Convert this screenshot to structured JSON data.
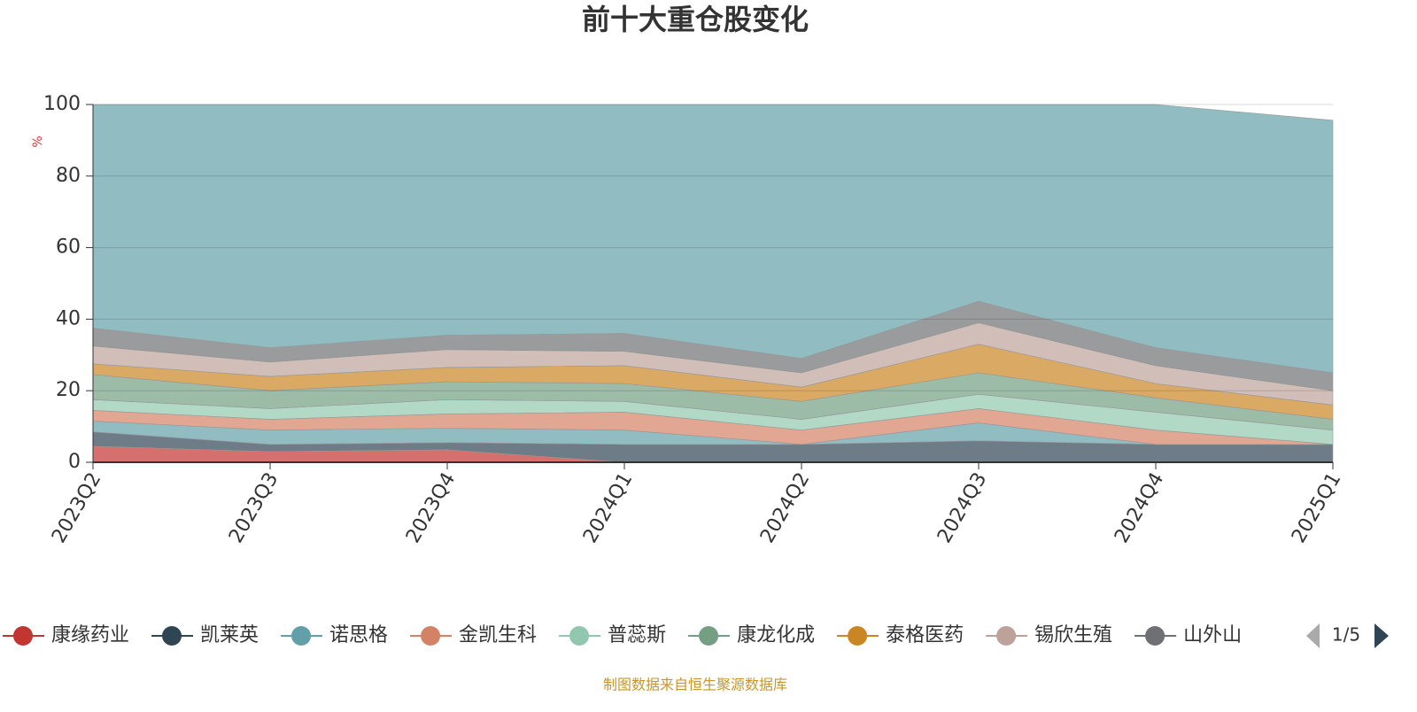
{
  "chart_data": {
    "type": "stacked_area",
    "title": "前十大重仓股变化",
    "y_label": "%",
    "categories": [
      "2023Q2",
      "2023Q3",
      "2023Q4",
      "2024Q1",
      "2024Q2",
      "2024Q3",
      "2024Q4",
      "2025Q1"
    ],
    "ylim": [
      0,
      100
    ],
    "yticks": [
      0,
      20,
      40,
      60,
      80,
      100
    ],
    "grid": true,
    "series": [
      {
        "name": "康缘药业",
        "color": "#c23531",
        "values": [
          4.5,
          3,
          3.5,
          0,
          0,
          0,
          0,
          0
        ]
      },
      {
        "name": "凯莱英",
        "color": "#2f4554",
        "values": [
          4,
          2,
          2,
          5,
          5,
          6,
          5,
          5
        ]
      },
      {
        "name": "诺思格",
        "color": "#61a0a8",
        "values": [
          3,
          4,
          4,
          4,
          0,
          5,
          0,
          0
        ]
      },
      {
        "name": "金凯生科",
        "color": "#d48265",
        "values": [
          3,
          3,
          4,
          5,
          4,
          4,
          4,
          0
        ]
      },
      {
        "name": "普蕊斯",
        "color": "#91c7ae",
        "values": [
          3,
          3,
          4,
          3,
          3,
          4,
          5,
          4
        ]
      },
      {
        "name": "康龙化成",
        "color": "#749f83",
        "values": [
          7,
          5,
          5,
          5,
          5,
          6,
          4,
          3
        ]
      },
      {
        "name": "泰格医药",
        "color": "#ca8622",
        "values": [
          3,
          4,
          4,
          5,
          4,
          8,
          4,
          4
        ]
      },
      {
        "name": "锡欣生殖",
        "color": "#bda29a",
        "values": [
          5,
          4,
          5,
          4,
          4,
          6,
          5,
          4
        ]
      },
      {
        "name": "山外山",
        "color": "#6e7074",
        "values": [
          5,
          4,
          4,
          5,
          4,
          6,
          5,
          5
        ]
      },
      {
        "color": "#61a0a8",
        "values": [
          62.5,
          68,
          64.5,
          64,
          71,
          55,
          68,
          70.6
        ]
      }
    ],
    "legend_page": "1/5",
    "source": "制图数据来自恒生聚源数据库"
  }
}
